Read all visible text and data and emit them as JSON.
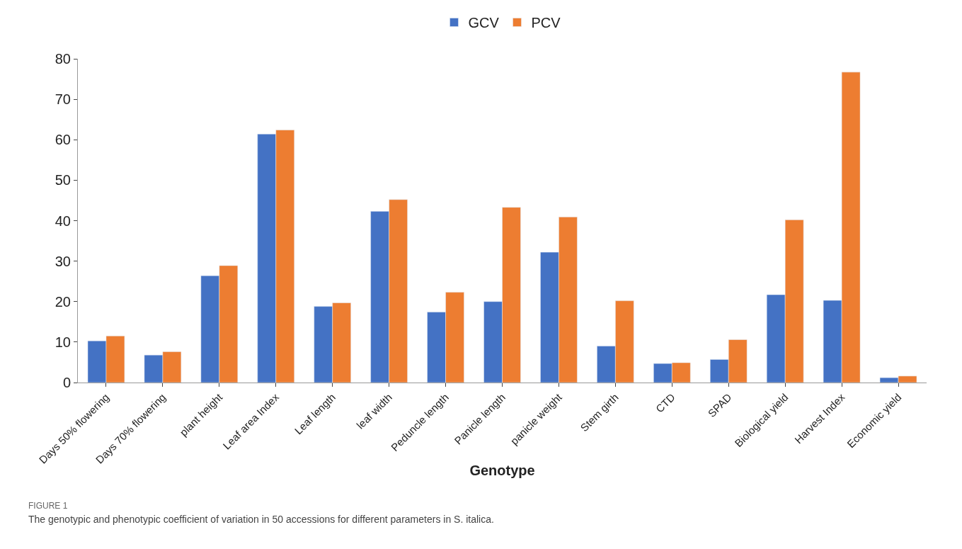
{
  "chart_data": {
    "type": "bar",
    "categories": [
      "Days 50% flowering",
      "Days 70% flowering",
      "plant height",
      "Leaf area Index",
      "Leaf length",
      "leaf width",
      "Peduncle length",
      "Panicle length",
      "panicle weight",
      "Stem girth",
      "CTD",
      "SPAD",
      "Biological yield",
      "Harvest Index",
      "Economic yield"
    ],
    "series": [
      {
        "name": "GCV",
        "color": "#4472c4",
        "values": [
          10.3,
          6.8,
          26.4,
          61.4,
          18.8,
          42.3,
          17.4,
          20,
          32.2,
          9,
          4.7,
          5.7,
          21.7,
          20.3,
          1.2
        ]
      },
      {
        "name": "PCV",
        "color": "#ed7d31",
        "values": [
          11.5,
          7.6,
          28.9,
          62.4,
          19.7,
          45.2,
          22.3,
          43.3,
          40.9,
          20.2,
          4.9,
          10.6,
          40.2,
          76.7,
          1.6
        ]
      }
    ],
    "xlabel": "Genotype",
    "ylim": [
      0,
      80
    ],
    "yticks": [
      0,
      10,
      20,
      30,
      40,
      50,
      60,
      70,
      80
    ],
    "legend": "top",
    "annotations": [
      "FIGURE 1",
      "The genotypic and phenotypic coefficient of variation in 50 accessions for different parameters in S. italica."
    ]
  }
}
